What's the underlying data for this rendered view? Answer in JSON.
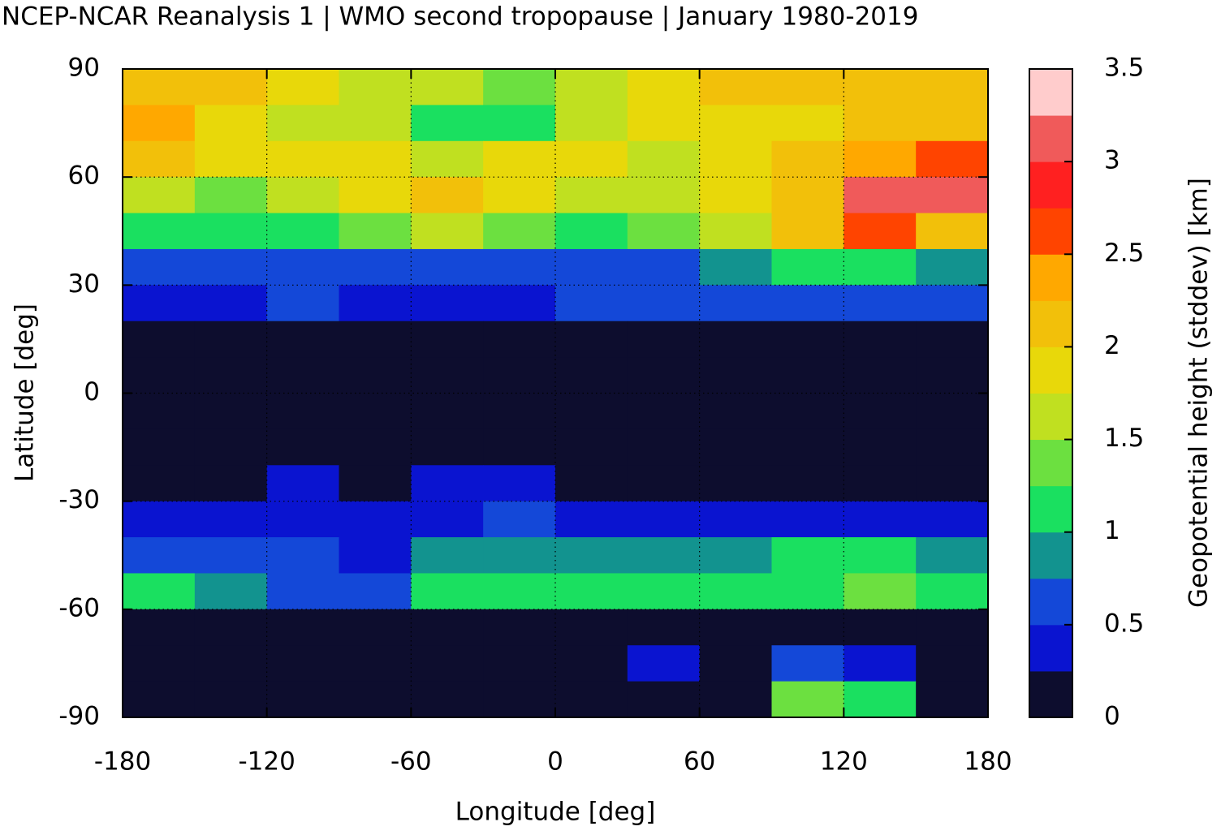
{
  "chart_data": {
    "type": "heatmap",
    "title": "NCEP-NCAR Reanalysis 1 | WMO second tropopause | January 1980-2019",
    "x_label": "Longitude [deg]",
    "y_label": "Latitude [deg]",
    "xlim": [
      -180,
      180
    ],
    "ylim": [
      -90,
      90
    ],
    "xticks": [
      -180,
      -120,
      -60,
      0,
      60,
      120,
      180
    ],
    "yticks": [
      -90,
      -60,
      -30,
      0,
      30,
      60,
      90
    ],
    "grid": true,
    "xbins": [
      -180,
      -150,
      -120,
      -90,
      -60,
      -30,
      0,
      30,
      60,
      90,
      120,
      150,
      180
    ],
    "ybins": [
      90,
      80,
      70,
      60,
      50,
      40,
      30,
      20,
      10,
      0,
      -10,
      -20,
      -30,
      -40,
      -50,
      -60,
      -70,
      -80,
      -90
    ],
    "z": [
      [
        2.2,
        2.1,
        1.9,
        1.7,
        1.6,
        1.4,
        1.7,
        1.9,
        2.0,
        2.0,
        2.1,
        2.2
      ],
      [
        2.3,
        1.9,
        1.7,
        1.6,
        1.2,
        1.1,
        1.6,
        1.8,
        1.9,
        1.9,
        2.0,
        2.1
      ],
      [
        2.0,
        1.8,
        1.8,
        1.9,
        1.7,
        1.9,
        1.9,
        1.7,
        1.9,
        2.1,
        2.3,
        2.6
      ],
      [
        1.5,
        1.4,
        1.6,
        1.9,
        2.0,
        1.9,
        1.7,
        1.7,
        1.9,
        2.2,
        3.1,
        3.2
      ],
      [
        1.1,
        1.2,
        1.1,
        1.4,
        1.6,
        1.3,
        1.2,
        1.3,
        1.5,
        2.0,
        2.7,
        2.2
      ],
      [
        0.6,
        0.7,
        0.6,
        0.7,
        0.7,
        0.6,
        0.6,
        0.6,
        0.8,
        1.0,
        1.2,
        0.9
      ],
      [
        0.4,
        0.4,
        0.5,
        0.4,
        0.4,
        0.4,
        0.5,
        0.5,
        0.5,
        0.6,
        0.6,
        0.5
      ],
      [
        0.1,
        0.1,
        0.1,
        0.1,
        0.1,
        0.1,
        0.1,
        0.1,
        0.1,
        0.1,
        0.1,
        0.1
      ],
      [
        0.1,
        0.1,
        0.1,
        0.1,
        0.1,
        0.1,
        0.1,
        0.1,
        0.1,
        0.1,
        0.1,
        0.1
      ],
      [
        0.1,
        0.1,
        0.1,
        0.1,
        0.1,
        0.1,
        0.1,
        0.1,
        0.1,
        0.1,
        0.1,
        0.1
      ],
      [
        0.1,
        0.1,
        0.1,
        0.1,
        0.1,
        0.1,
        0.1,
        0.1,
        0.1,
        0.1,
        0.1,
        0.1
      ],
      [
        0.1,
        0.1,
        0.4,
        0.1,
        0.4,
        0.4,
        0.1,
        0.1,
        0.1,
        0.1,
        0.1,
        0.1
      ],
      [
        0.4,
        0.4,
        0.4,
        0.4,
        0.4,
        0.5,
        0.4,
        0.4,
        0.4,
        0.4,
        0.4,
        0.4
      ],
      [
        0.6,
        0.5,
        0.5,
        0.4,
        0.8,
        0.9,
        0.8,
        0.8,
        0.9,
        1.0,
        1.0,
        0.9
      ],
      [
        1.0,
        0.8,
        0.6,
        0.5,
        1.1,
        1.2,
        1.0,
        1.0,
        1.2,
        1.2,
        1.3,
        1.2
      ],
      [
        0.1,
        0.1,
        0.1,
        0.1,
        0.1,
        0.1,
        0.1,
        0.1,
        0.1,
        0.1,
        0.1,
        0.1
      ],
      [
        0.1,
        0.1,
        0.1,
        0.1,
        0.1,
        0.1,
        0.1,
        0.4,
        0.1,
        0.6,
        0.4,
        0.1
      ],
      [
        0.1,
        0.1,
        0.1,
        0.1,
        0.1,
        0.1,
        0.1,
        0.1,
        0.1,
        1.3,
        1.1,
        0.1
      ]
    ],
    "colorbar": {
      "label": "Geopotential height (stddev) [km]",
      "ticks": [
        0,
        0.5,
        1,
        1.5,
        2,
        2.5,
        3,
        3.5
      ],
      "levels": [
        0,
        0.25,
        0.5,
        0.75,
        1,
        1.25,
        1.5,
        1.75,
        2,
        2.25,
        2.5,
        2.75,
        3,
        3.25,
        3.5
      ],
      "colors": [
        "#0d0d2e",
        "#0a14d0",
        "#1448d8",
        "#12938f",
        "#1ae060",
        "#6ce040",
        "#c0e020",
        "#e8d80a",
        "#f2c00a",
        "#ffa800",
        "#ff4400",
        "#ff2020",
        "#f05a5a",
        "#ffcccc"
      ]
    }
  }
}
